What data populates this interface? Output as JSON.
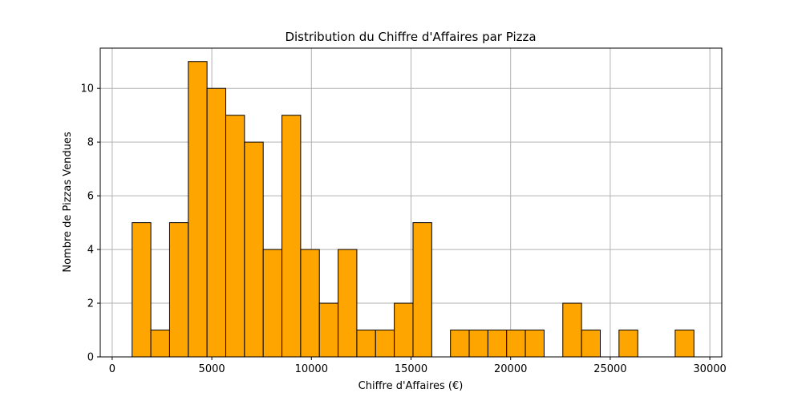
{
  "chart_data": {
    "type": "bar",
    "title": "Distribution du Chiffre d'Affaires par Pizza",
    "xlabel": "Chiffre d'Affaires (€)",
    "ylabel": "Nombre de Pizzas Vendues",
    "bin_start": 1000,
    "bin_width": 940,
    "counts": [
      5,
      1,
      5,
      11,
      10,
      9,
      8,
      4,
      9,
      4,
      2,
      4,
      1,
      1,
      2,
      5,
      0,
      1,
      1,
      1,
      1,
      1,
      0,
      2,
      1,
      0,
      1,
      0,
      0,
      1
    ],
    "xlim": [
      0,
      30600
    ],
    "ylim": [
      0,
      11.5
    ],
    "xticks": [
      0,
      5000,
      10000,
      15000,
      20000,
      25000,
      30000
    ],
    "xtick_labels": [
      "0",
      "5000",
      "10000",
      "15000",
      "20000",
      "25000",
      "30000"
    ],
    "yticks": [
      0,
      2,
      4,
      6,
      8,
      10
    ],
    "ytick_labels": [
      "0",
      "2",
      "4",
      "6",
      "8",
      "10"
    ],
    "grid": true,
    "bar_color": "#ffa500",
    "edge_color": "#000000"
  }
}
